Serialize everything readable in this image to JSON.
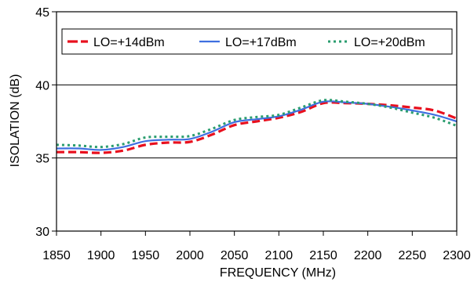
{
  "chart_data": {
    "type": "line",
    "xlabel": "FREQUENCY (MHz)",
    "ylabel": "ISOLATION (dB)",
    "xlim": [
      1850,
      2300
    ],
    "ylim": [
      30,
      45
    ],
    "xticks": [
      1850,
      1900,
      1950,
      2000,
      2050,
      2100,
      2150,
      2200,
      2250,
      2300
    ],
    "yticks": [
      30,
      35,
      40,
      45
    ],
    "grid": "horizontal",
    "legend_position": "top",
    "series": [
      {
        "name": "LO=+14dBm",
        "color": "#e8101e",
        "dash": "dashed",
        "x": [
          1850,
          1875,
          1900,
          1925,
          1950,
          1975,
          2000,
          2025,
          2050,
          2075,
          2100,
          2125,
          2150,
          2175,
          2200,
          2225,
          2250,
          2275,
          2300
        ],
        "y": [
          35.4,
          35.4,
          35.35,
          35.5,
          35.9,
          36.05,
          36.1,
          36.6,
          37.25,
          37.5,
          37.75,
          38.15,
          38.75,
          38.75,
          38.7,
          38.6,
          38.45,
          38.25,
          37.7
        ]
      },
      {
        "name": "LO=+17dBm",
        "color": "#3f6fe0",
        "dash": "solid",
        "x": [
          1850,
          1875,
          1900,
          1925,
          1950,
          1975,
          2000,
          2025,
          2050,
          2075,
          2100,
          2125,
          2150,
          2175,
          2200,
          2225,
          2250,
          2275,
          2300
        ],
        "y": [
          35.65,
          35.65,
          35.55,
          35.75,
          36.15,
          36.25,
          36.3,
          36.8,
          37.45,
          37.65,
          37.85,
          38.3,
          38.85,
          38.8,
          38.7,
          38.5,
          38.25,
          37.95,
          37.5
        ]
      },
      {
        "name": "LO=+20dBm",
        "color": "#2a9d6f",
        "dash": "dotted",
        "x": [
          1850,
          1875,
          1900,
          1925,
          1950,
          1975,
          2000,
          2025,
          2050,
          2075,
          2100,
          2125,
          2150,
          2175,
          2200,
          2225,
          2250,
          2275,
          2300
        ],
        "y": [
          35.9,
          35.85,
          35.75,
          35.95,
          36.4,
          36.45,
          36.5,
          37.0,
          37.6,
          37.8,
          37.95,
          38.45,
          38.95,
          38.85,
          38.7,
          38.45,
          38.1,
          37.75,
          37.2
        ]
      }
    ]
  }
}
